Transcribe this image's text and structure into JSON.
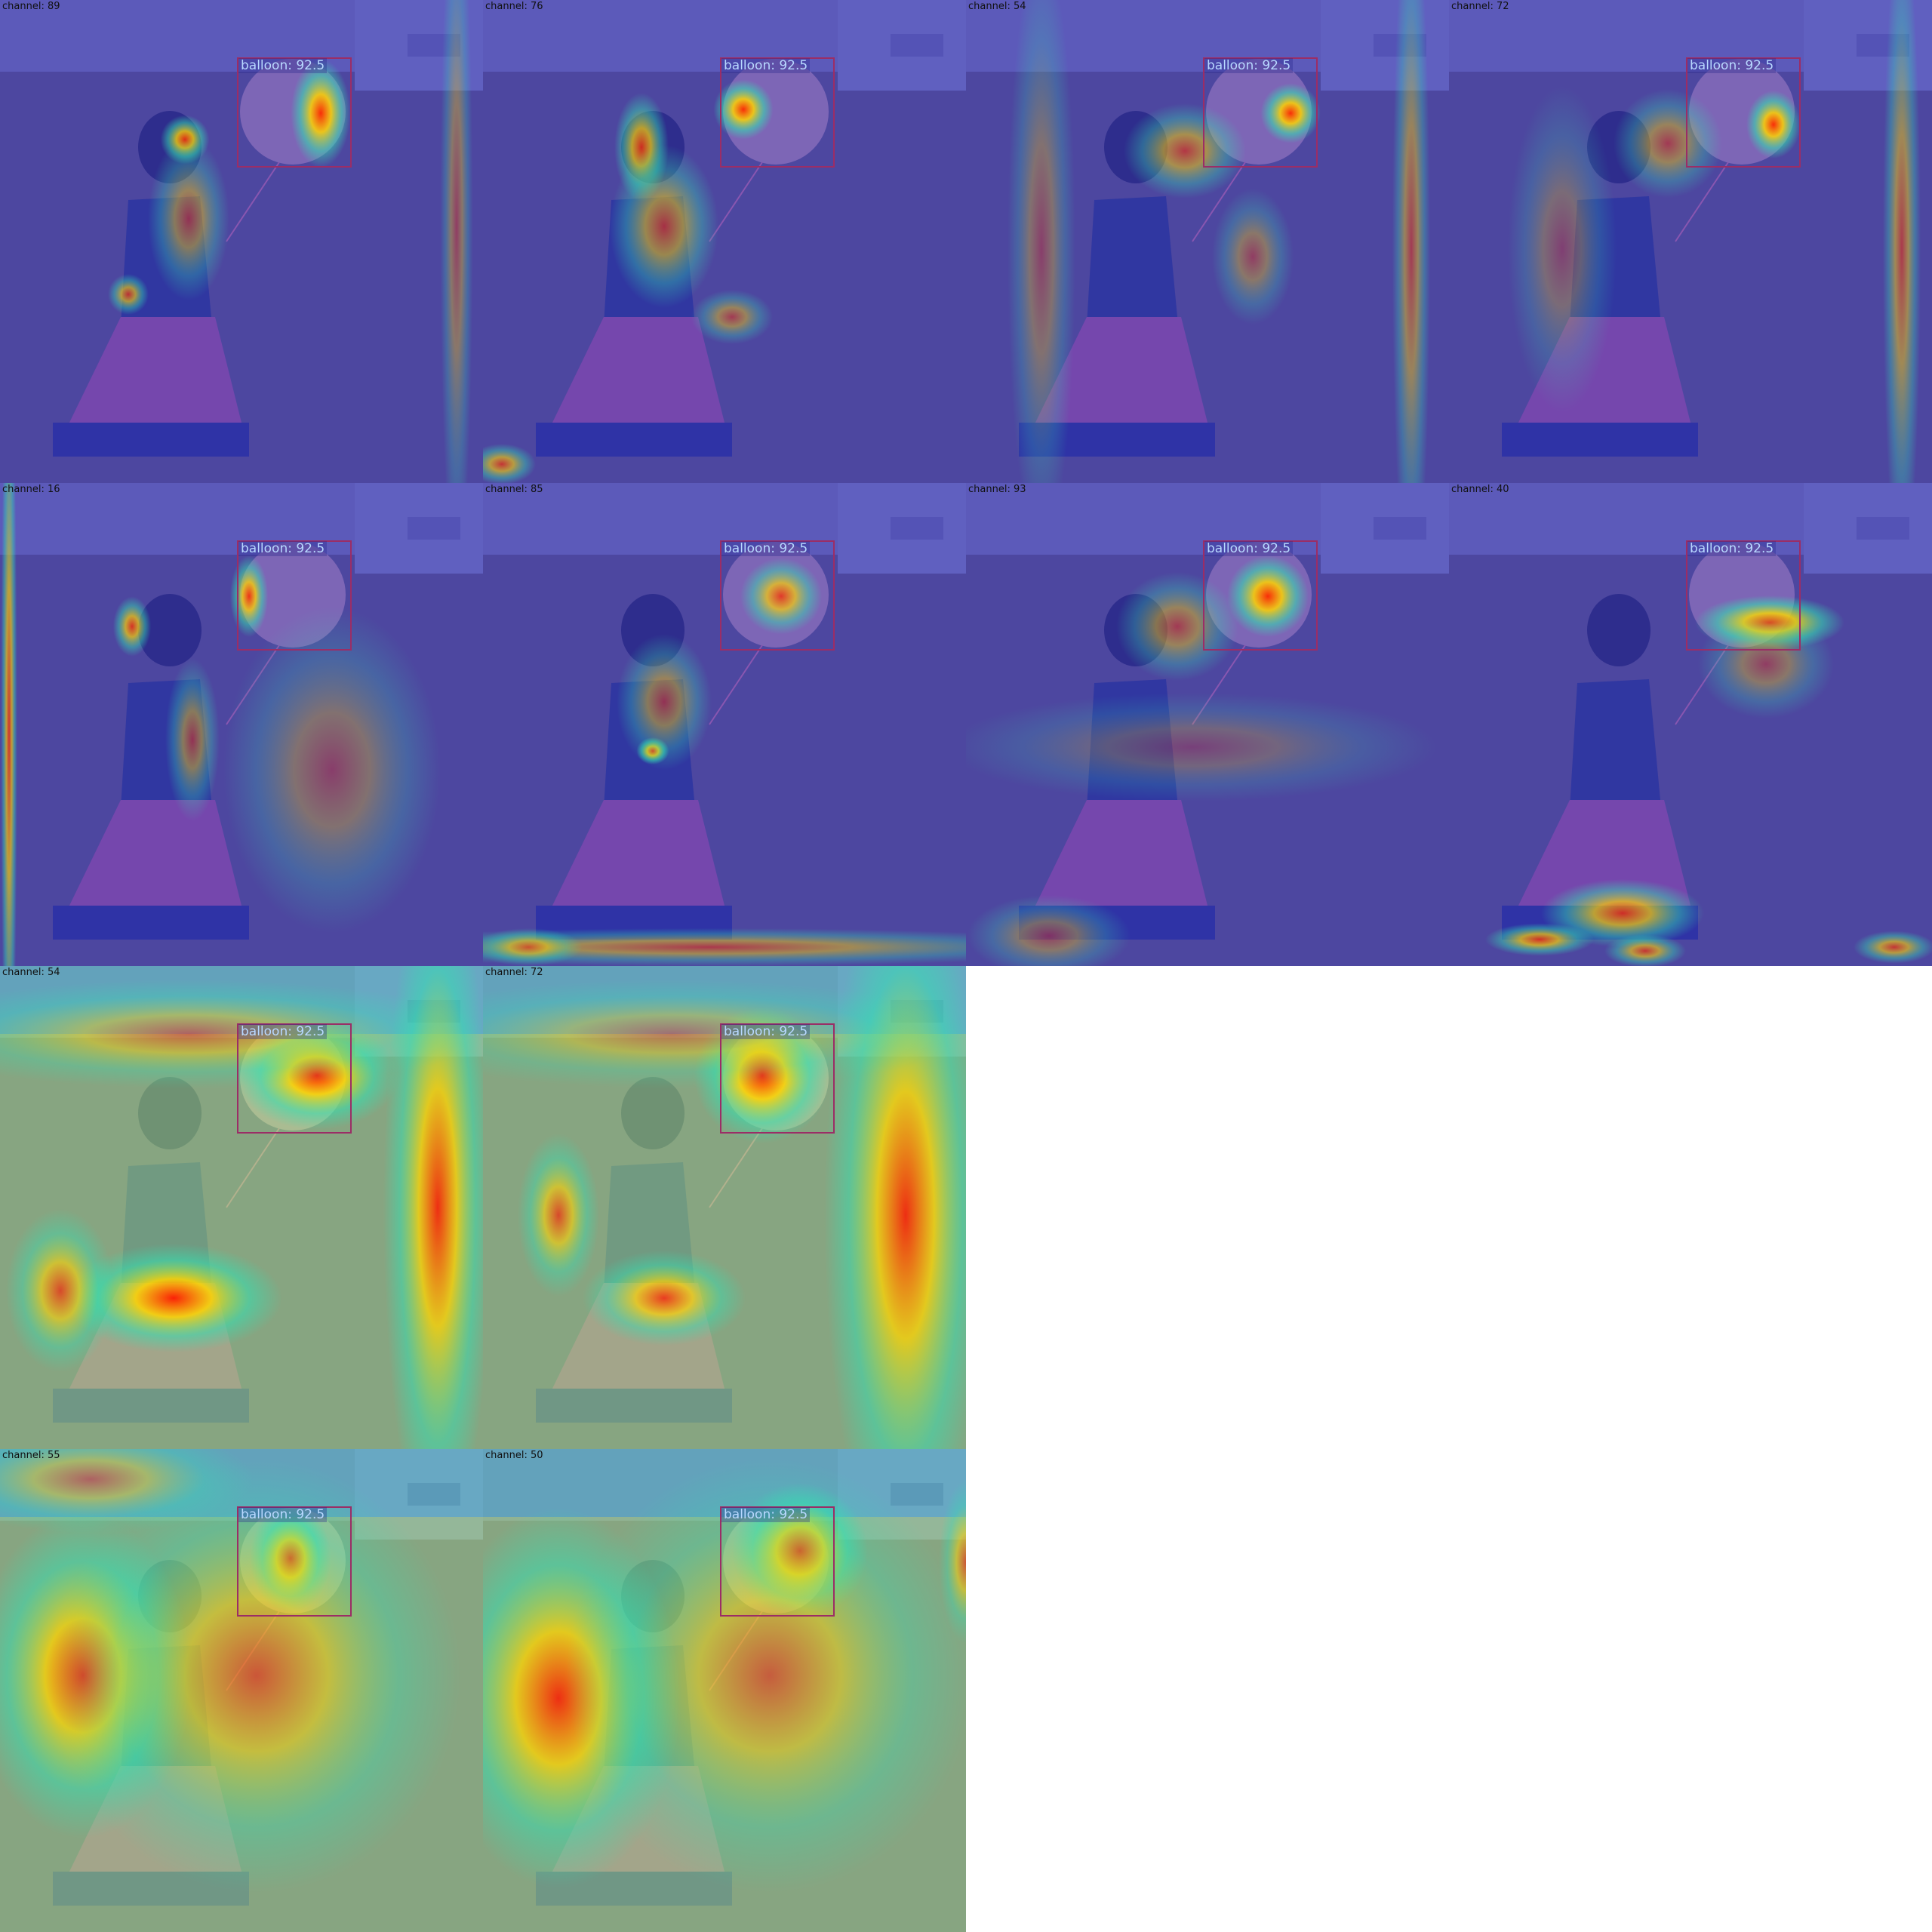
{
  "detection": {
    "label": "balloon: 92.5"
  },
  "colors": {
    "box": "#9b2d66",
    "label_text": "#b8d8ff",
    "background": "#ffffff"
  },
  "panels": [
    {
      "caption": "channel: 89",
      "colormap": "cool"
    },
    {
      "caption": "channel: 76",
      "colormap": "cool"
    },
    {
      "caption": "channel: 54",
      "colormap": "cool"
    },
    {
      "caption": "channel: 72",
      "colormap": "cool"
    },
    {
      "caption": "channel: 16",
      "colormap": "cool"
    },
    {
      "caption": "channel: 85",
      "colormap": "cool"
    },
    {
      "caption": "channel: 93",
      "colormap": "cool"
    },
    {
      "caption": "channel: 40",
      "colormap": "cool"
    },
    {
      "caption": "channel: 54",
      "colormap": "warm"
    },
    {
      "caption": "channel: 72",
      "colormap": "warm"
    },
    {
      "caption": "channel: 55",
      "colormap": "warm"
    },
    {
      "caption": "channel: 50",
      "colormap": "warm"
    }
  ]
}
